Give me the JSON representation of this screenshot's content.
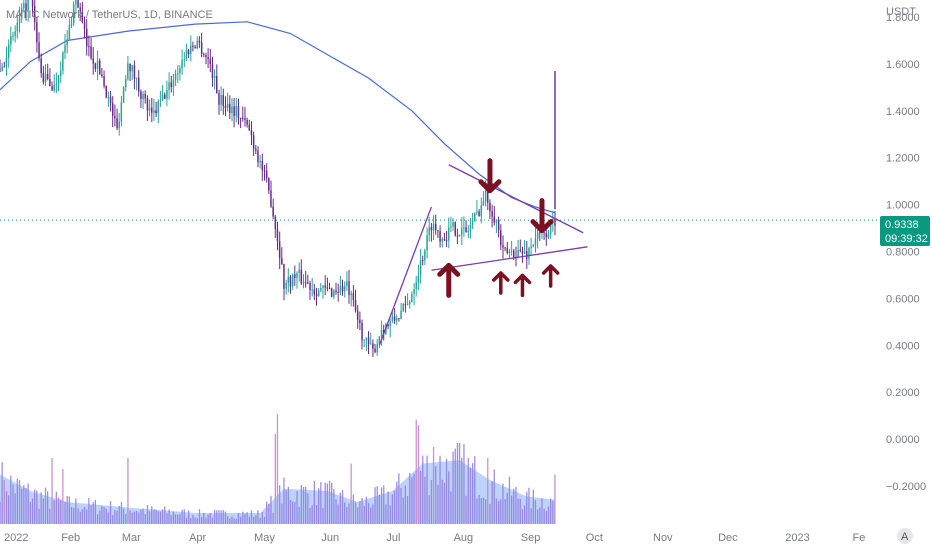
{
  "header": {
    "symbol_title": "MATIC Network / TetherUS, 1D, BINANCE",
    "currency": "USDT"
  },
  "price_badge": {
    "price": "0.9338",
    "countdown": "09:39:32",
    "color": "#089981"
  },
  "colors": {
    "up": "#26a69a",
    "down": "#6a2a8a",
    "trendline": "#7a3ab0",
    "ma": "#4a6ae0",
    "arrow": "#7a1020",
    "volume_bar": "#8f7ae0",
    "volume_bar_spike": "#c080c8",
    "volume_area": "#a8c4f8"
  },
  "chart_data": {
    "type": "candlestick",
    "title": "MATIC Network / TetherUS, 1D, BINANCE",
    "y_axis": {
      "unit": "USDT",
      "ticks": [
        "1.8000",
        "1.6000",
        "1.4000",
        "1.2000",
        "1.0000",
        "0.8000",
        "0.6000",
        "0.4000",
        "0.2000",
        "0.0000",
        "−0.2000"
      ],
      "ylim": [
        -0.26,
        1.86
      ]
    },
    "x_axis": {
      "ticks": [
        "2022",
        "Feb",
        "Mar",
        "Apr",
        "May",
        "Jun",
        "Jul",
        "Aug",
        "Sep",
        "Oct",
        "Nov",
        "Dec",
        "2023",
        "Fe"
      ],
      "range": [
        "2022-01-01",
        "2023-02-10"
      ]
    },
    "last_price": 0.9338,
    "price_path": [
      [
        "2022-01-01",
        1.57
      ],
      [
        "2022-01-08",
        1.74
      ],
      [
        "2022-01-15",
        1.9
      ],
      [
        "2022-01-20",
        1.55
      ],
      [
        "2022-01-26",
        1.5
      ],
      [
        "2022-02-01",
        1.7
      ],
      [
        "2022-02-05",
        1.9
      ],
      [
        "2022-02-10",
        1.68
      ],
      [
        "2022-02-17",
        1.55
      ],
      [
        "2022-02-24",
        1.32
      ],
      [
        "2022-03-01",
        1.62
      ],
      [
        "2022-03-06",
        1.5
      ],
      [
        "2022-03-12",
        1.37
      ],
      [
        "2022-03-20",
        1.5
      ],
      [
        "2022-03-28",
        1.65
      ],
      [
        "2022-04-02",
        1.7
      ],
      [
        "2022-04-08",
        1.6
      ],
      [
        "2022-04-12",
        1.45
      ],
      [
        "2022-04-20",
        1.4
      ],
      [
        "2022-04-26",
        1.32
      ],
      [
        "2022-05-02",
        1.15
      ],
      [
        "2022-05-06",
        1.02
      ],
      [
        "2022-05-10",
        0.8
      ],
      [
        "2022-05-12",
        0.66
      ],
      [
        "2022-05-18",
        0.7
      ],
      [
        "2022-05-26",
        0.64
      ],
      [
        "2022-06-03",
        0.63
      ],
      [
        "2022-06-10",
        0.65
      ],
      [
        "2022-06-14",
        0.54
      ],
      [
        "2022-06-18",
        0.42
      ],
      [
        "2022-06-22",
        0.37
      ],
      [
        "2022-06-26",
        0.47
      ],
      [
        "2022-07-01",
        0.5
      ],
      [
        "2022-07-08",
        0.57
      ],
      [
        "2022-07-14",
        0.75
      ],
      [
        "2022-07-19",
        0.92
      ],
      [
        "2022-07-24",
        0.86
      ],
      [
        "2022-07-29",
        0.9
      ],
      [
        "2022-08-04",
        0.88
      ],
      [
        "2022-08-09",
        0.96
      ],
      [
        "2022-08-13",
        1.04
      ],
      [
        "2022-08-18",
        0.93
      ],
      [
        "2022-08-21",
        0.79
      ],
      [
        "2022-08-27",
        0.8
      ],
      [
        "2022-09-01",
        0.79
      ],
      [
        "2022-09-05",
        0.86
      ],
      [
        "2022-09-09",
        0.87
      ],
      [
        "2022-09-12",
        0.9
      ],
      [
        "2022-09-14",
        0.9338
      ]
    ],
    "wick_spike": {
      "date": "2022-09-14",
      "low": 0.98,
      "high": 1.57
    },
    "moving_average": [
      [
        "2022-01-01",
        1.49
      ],
      [
        "2022-01-15",
        1.61
      ],
      [
        "2022-02-01",
        1.7
      ],
      [
        "2022-03-01",
        1.74
      ],
      [
        "2022-04-01",
        1.77
      ],
      [
        "2022-04-25",
        1.78
      ],
      [
        "2022-05-15",
        1.73
      ],
      [
        "2022-06-01",
        1.64
      ],
      [
        "2022-06-20",
        1.54
      ],
      [
        "2022-07-10",
        1.4
      ],
      [
        "2022-07-25",
        1.26
      ],
      [
        "2022-08-10",
        1.13
      ],
      [
        "2022-08-25",
        1.03
      ],
      [
        "2022-09-05",
        0.99
      ],
      [
        "2022-09-14",
        0.965
      ]
    ],
    "trendlines": [
      {
        "from": [
          "2022-07-27",
          1.17
        ],
        "to": [
          "2022-09-27",
          0.88
        ]
      },
      {
        "from": [
          "2022-07-19",
          0.72
        ],
        "to": [
          "2022-09-29",
          0.82
        ]
      },
      {
        "from": [
          "2022-06-25",
          0.4
        ],
        "to": [
          "2022-07-19",
          0.99
        ]
      }
    ],
    "annotations": {
      "down_arrows": [
        [
          "2022-08-15",
          1.17
        ],
        [
          "2022-09-08",
          1.0
        ]
      ],
      "up_arrows": [
        [
          "2022-07-27",
          0.63
        ],
        [
          "2022-08-20",
          0.64
        ],
        [
          "2022-08-30",
          0.63
        ],
        [
          "2022-09-12",
          0.67
        ]
      ]
    },
    "volume": {
      "bars_max_level": 1.0,
      "spikes": [
        [
          "2022-01-03",
          0.4
        ],
        [
          "2022-01-25",
          0.6
        ],
        [
          "2022-01-30",
          0.5
        ],
        [
          "2022-03-01",
          0.6
        ],
        [
          "2022-05-08",
          0.82
        ],
        [
          "2022-05-09",
          1.0
        ],
        [
          "2022-06-12",
          0.55
        ],
        [
          "2022-07-12",
          0.95
        ],
        [
          "2022-07-13",
          0.9
        ],
        [
          "2022-07-20",
          0.7
        ],
        [
          "2022-08-14",
          0.6
        ],
        [
          "2022-09-14",
          0.45
        ]
      ],
      "area": [
        [
          "2022-01-01",
          0.45
        ],
        [
          "2022-01-15",
          0.3
        ],
        [
          "2022-02-01",
          0.2
        ],
        [
          "2022-03-01",
          0.15
        ],
        [
          "2022-04-01",
          0.1
        ],
        [
          "2022-05-01",
          0.1
        ],
        [
          "2022-05-12",
          0.32
        ],
        [
          "2022-06-01",
          0.3
        ],
        [
          "2022-06-15",
          0.2
        ],
        [
          "2022-07-01",
          0.3
        ],
        [
          "2022-07-15",
          0.55
        ],
        [
          "2022-08-01",
          0.58
        ],
        [
          "2022-08-15",
          0.4
        ],
        [
          "2022-09-01",
          0.25
        ],
        [
          "2022-09-14",
          0.22
        ]
      ]
    }
  }
}
